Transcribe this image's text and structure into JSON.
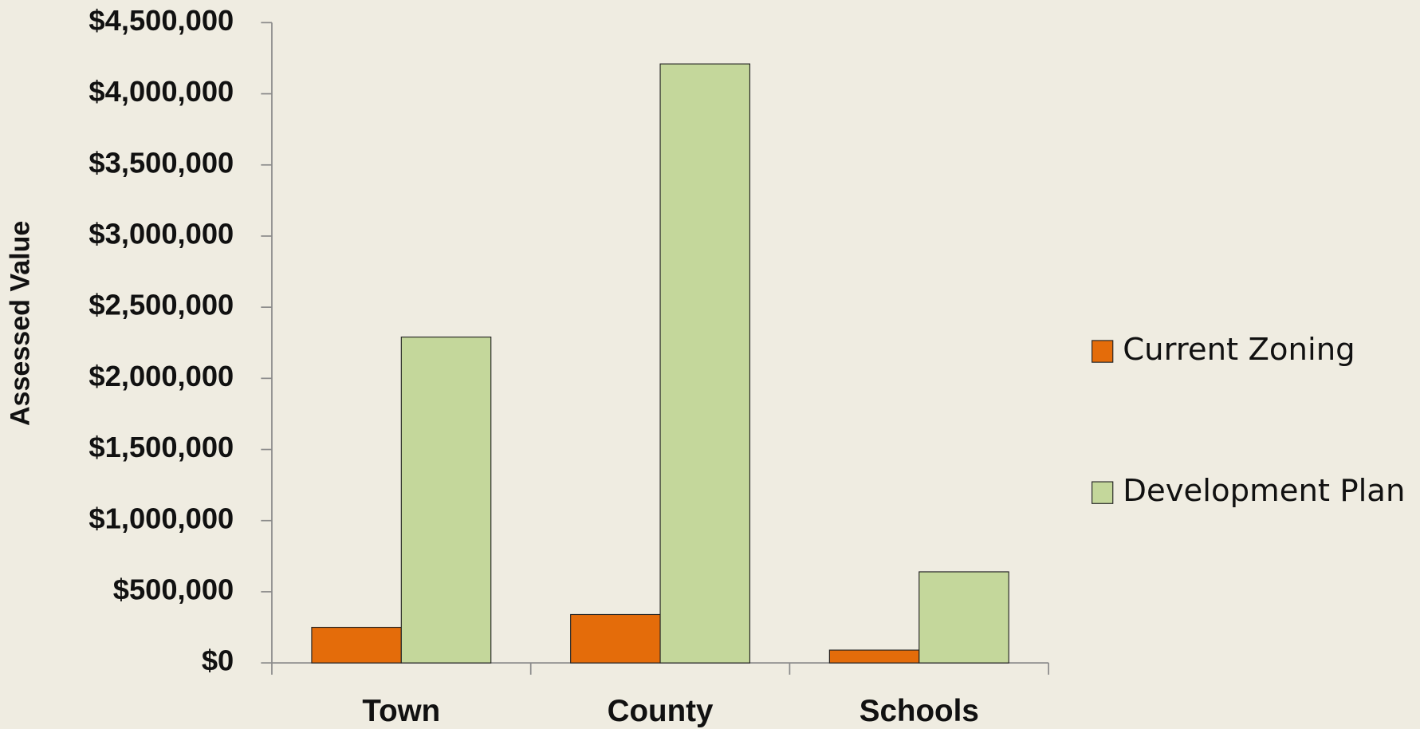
{
  "chart_data": {
    "type": "bar",
    "y_label": "Assessed Value",
    "categories": [
      "Town",
      "County",
      "Schools"
    ],
    "series": [
      {
        "name": "Current Zoning",
        "color": "#e46c0a",
        "values": [
          250000,
          340000,
          90000
        ]
      },
      {
        "name": "Development Plan",
        "color": "#c4d79b",
        "values": [
          2290000,
          4210000,
          640000
        ]
      }
    ],
    "ylim": [
      0,
      4500000
    ],
    "yticks": [
      {
        "value": 0,
        "label": "$0"
      },
      {
        "value": 500000,
        "label": "$500,000"
      },
      {
        "value": 1000000,
        "label": "$1,000,000"
      },
      {
        "value": 1500000,
        "label": "$1,500,000"
      },
      {
        "value": 2000000,
        "label": "$2,000,000"
      },
      {
        "value": 2500000,
        "label": "$2,500,000"
      },
      {
        "value": 3000000,
        "label": "$3,000,000"
      },
      {
        "value": 3500000,
        "label": "$3,500,000"
      },
      {
        "value": 4000000,
        "label": "$4,000,000"
      },
      {
        "value": 4500000,
        "label": "$4,500,000"
      }
    ],
    "legend": "right"
  }
}
